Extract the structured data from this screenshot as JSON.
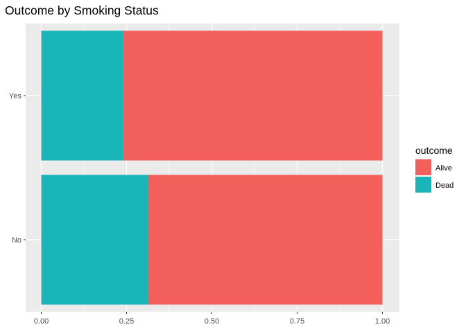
{
  "chart_data": {
    "type": "bar",
    "orientation": "horizontal",
    "stacked": "fill",
    "title": "Outcome by Smoking Status",
    "xlabel": "",
    "ylabel": "",
    "xlim": [
      0,
      1
    ],
    "x_ticks": [
      "0.00",
      "0.25",
      "0.50",
      "0.75",
      "1.00"
    ],
    "x_tick_values": [
      0,
      0.25,
      0.5,
      0.75,
      1.0
    ],
    "categories": [
      "No",
      "Yes"
    ],
    "series": [
      {
        "name": "Dead",
        "color": "#19B5B9",
        "values": [
          0.314,
          0.239
        ]
      },
      {
        "name": "Alive",
        "color": "#F3605C",
        "values": [
          0.686,
          0.761
        ]
      }
    ],
    "legend": {
      "title": "outcome",
      "placement": "right",
      "entries": [
        "Alive",
        "Dead"
      ]
    },
    "grid": true,
    "panel_background": "#EBEBEB",
    "grid_color": "#FFFFFF"
  }
}
